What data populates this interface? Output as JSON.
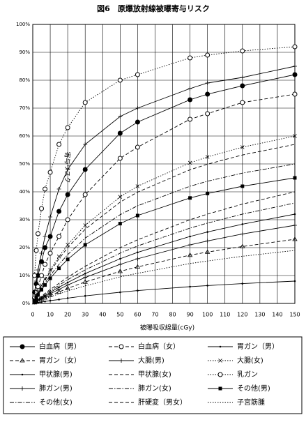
{
  "chart_data": {
    "type": "line",
    "title": "図6　原爆放射線被曝寄与リスク",
    "x_label": "被曝吸収線量(cGy)",
    "y_label": "寄与リスク",
    "x": [
      1,
      2,
      3,
      5,
      7,
      10,
      15,
      20,
      30,
      50,
      60,
      90,
      100,
      120,
      150
    ],
    "xlim": [
      0,
      150
    ],
    "xticks": [
      0,
      10,
      20,
      30,
      40,
      50,
      60,
      70,
      80,
      90,
      100,
      110,
      120,
      130,
      140,
      150
    ],
    "ylim": [
      0,
      100
    ],
    "yticks": [
      {
        "value": 0,
        "label": "0%"
      },
      {
        "value": 10,
        "label": "10%"
      },
      {
        "value": 20,
        "label": "20%"
      },
      {
        "value": 30,
        "label": "30%"
      },
      {
        "value": 40,
        "label": "40%"
      },
      {
        "value": 50,
        "label": "50%"
      },
      {
        "value": 60,
        "label": "60%"
      },
      {
        "value": 70,
        "label": "70%"
      },
      {
        "value": 80,
        "label": "80%"
      },
      {
        "value": 90,
        "label": "90%"
      },
      {
        "value": 100,
        "label": "100%"
      }
    ],
    "grid": true,
    "series": [
      {
        "name": "白血病（男）",
        "color": "#000000",
        "marker": "filled-circle",
        "dash": "solid",
        "values": [
          4,
          7,
          10,
          15,
          20,
          24,
          33,
          39,
          48,
          61,
          65,
          73,
          75,
          78,
          82
        ]
      },
      {
        "name": "白血病（女）",
        "color": "#000000",
        "marker": "open-circle",
        "dash": "dashed",
        "values": [
          2,
          4,
          6,
          10,
          14,
          18,
          24,
          30,
          39,
          52,
          56,
          66,
          68,
          72,
          75
        ]
      },
      {
        "name": "胃ガン（男）",
        "color": "#000000",
        "marker": "dot",
        "dash": "solid",
        "values": [
          0.1,
          0.2,
          0.3,
          0.5,
          0.7,
          1,
          1.4,
          1.9,
          2.7,
          4,
          4.6,
          6,
          6.4,
          7.1,
          8
        ]
      },
      {
        "name": "胃ガン（女）",
        "color": "#000000",
        "marker": "triangle",
        "dash": "dashed",
        "values": [
          0.3,
          0.6,
          0.9,
          1.5,
          2,
          2.9,
          4.1,
          5.4,
          7.7,
          11.5,
          13.1,
          17.3,
          18.4,
          20.4,
          23
        ]
      },
      {
        "name": "大腸(男)",
        "color": "#000000",
        "marker": "plus",
        "dash": "solid",
        "values": [
          4,
          8,
          12,
          18,
          24,
          31,
          41,
          48,
          57,
          67,
          70,
          77,
          79,
          81,
          85
        ]
      },
      {
        "name": "大腸(女)",
        "color": "#000000",
        "marker": "cross",
        "dash": "dotted",
        "values": [
          1.4,
          2.7,
          4,
          6.5,
          8.8,
          12,
          16.8,
          21,
          28,
          38.2,
          42,
          50.4,
          52.5,
          56,
          60
        ]
      },
      {
        "name": "甲状腺(男)",
        "color": "#000000",
        "marker": "dot",
        "dash": "solid",
        "values": [
          0.4,
          0.8,
          1.2,
          2.1,
          2.8,
          4,
          5.8,
          7.5,
          10.7,
          16,
          18.3,
          24,
          25.6,
          28.4,
          32
        ]
      },
      {
        "name": "甲状腺(女)",
        "color": "#000000",
        "marker": "none",
        "dash": "dashed",
        "values": [
          1.3,
          2.6,
          3.8,
          6.2,
          8.3,
          11.4,
          16,
          20,
          26.6,
          36.3,
          39.9,
          47.9,
          49.9,
          53.2,
          57
        ]
      },
      {
        "name": "乳ガン",
        "color": "#000000",
        "marker": "open-circle",
        "dash": "dotted",
        "values": [
          10,
          19,
          25,
          34,
          41,
          47,
          57,
          63,
          72,
          80,
          82,
          88,
          89,
          90.5,
          92
        ]
      },
      {
        "name": "肺ガン(男)",
        "color": "#000000",
        "marker": "plus",
        "dash": "solid",
        "values": [
          0.4,
          0.7,
          1.1,
          1.8,
          2.5,
          3.5,
          5,
          6.6,
          9.3,
          14,
          16,
          21,
          22.4,
          24.9,
          28
        ]
      },
      {
        "name": "肺ガン(女)",
        "color": "#000000",
        "marker": "none",
        "dash": "dashdot",
        "values": [
          0.5,
          0.9,
          1.4,
          2.3,
          3.2,
          4.5,
          6.5,
          8.5,
          12,
          18,
          20.6,
          27,
          28.8,
          32,
          36
        ]
      },
      {
        "name": "その他(男)",
        "color": "#000000",
        "marker": "square",
        "dash": "solid",
        "values": [
          1,
          2,
          3,
          4.9,
          6.6,
          9,
          12.6,
          15.8,
          21,
          28.6,
          31.5,
          37.8,
          39.4,
          42,
          45
        ]
      },
      {
        "name": "その他(女)",
        "color": "#000000",
        "marker": "none",
        "dash": "dashdot",
        "values": [
          1.2,
          2.3,
          3.4,
          5.4,
          7.3,
          10,
          14,
          17.5,
          23.4,
          31.8,
          35,
          42,
          43.8,
          46.7,
          50
        ]
      },
      {
        "name": "肝硬変（男女）",
        "color": "#000000",
        "marker": "none",
        "dash": "dashed",
        "values": [
          0.5,
          1,
          1.6,
          2.6,
          3.6,
          5,
          7.2,
          9.4,
          13.3,
          20,
          22.8,
          30,
          32,
          35.6,
          40
        ]
      },
      {
        "name": "子宮筋腫",
        "color": "#000000",
        "marker": "none",
        "dash": "dotted",
        "values": [
          0.2,
          0.5,
          0.7,
          1.2,
          1.7,
          2.4,
          3.4,
          4.5,
          6.3,
          9.5,
          10.8,
          14.3,
          15.2,
          16.9,
          19
        ]
      }
    ]
  }
}
